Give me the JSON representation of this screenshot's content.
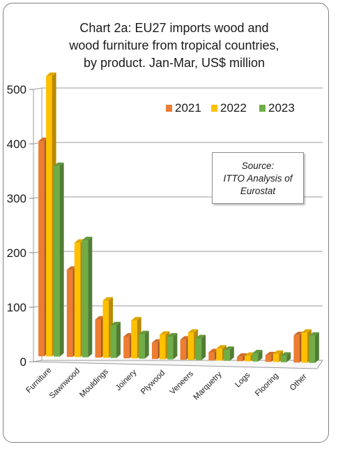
{
  "title_lines": [
    "Chart 2a: EU27 imports wood and",
    "wood furniture from tropical countries,",
    "by product. Jan-Mar, US$ million"
  ],
  "source": {
    "lines": [
      "Source:",
      "ITTO Analysis of",
      "Eurostat"
    ]
  },
  "colors": {
    "2021": "#ed7d31",
    "2022": "#ffc000",
    "2023": "#70ad47"
  },
  "chart_data": {
    "type": "bar",
    "style": "3d-clustered-column",
    "title": "Chart 2a: EU27 imports wood and wood furniture from tropical countries, by product. Jan-Mar, US$ million",
    "categories": [
      "Furniture",
      "Sawnwood",
      "Mouldings",
      "Joinery",
      "Plywood",
      "Veneers",
      "Marquetry",
      "Logs",
      "Flooring",
      "Other"
    ],
    "series": [
      {
        "name": "2021",
        "values": [
          395,
          160,
          70,
          40,
          30,
          37,
          15,
          8,
          12,
          50
        ]
      },
      {
        "name": "2022",
        "values": [
          515,
          210,
          105,
          70,
          45,
          50,
          22,
          10,
          15,
          55
        ]
      },
      {
        "name": "2023",
        "values": [
          350,
          215,
          60,
          45,
          42,
          40,
          20,
          15,
          12,
          50
        ]
      }
    ],
    "yticks": [
      "0",
      "100",
      "200",
      "300",
      "400",
      "500"
    ],
    "ylim": [
      0,
      500
    ],
    "xlabel": "",
    "ylabel": "",
    "grid": true,
    "legend_position": "top-right"
  }
}
